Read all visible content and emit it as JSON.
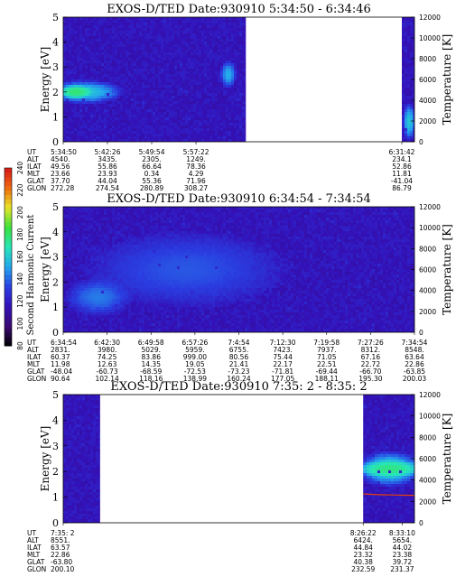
{
  "chart_data": {
    "type": "heatmap",
    "colorbar": {
      "label": "Second Harmonic Current",
      "ticks": [
        "80",
        "100",
        "120",
        "140",
        "160",
        "180",
        "200",
        "220",
        "240"
      ],
      "range": [
        80,
        240
      ],
      "colors": [
        "#000000",
        "#3a0a72",
        "#3311b8",
        "#2a3de0",
        "#24a6ee",
        "#28e6b8",
        "#3ce03c",
        "#e6e628",
        "#ee6a10",
        "#d81818"
      ]
    },
    "panels": [
      {
        "title": "EXOS-D/TED   Date:930910  5:34:50 - 6:34:46",
        "ylabel": "Energy [eV]",
        "y2label": "Temperature [K]",
        "ylim": [
          0,
          5
        ],
        "y_ticks": [
          "0",
          "1",
          "2",
          "3",
          "4",
          "5"
        ],
        "y2lim": [
          0,
          12000
        ],
        "y2_ticks": [
          "0",
          "2000",
          "4000",
          "6000",
          "8000",
          "10000",
          "12000"
        ],
        "data_segments": [
          [
            0,
            0.52
          ],
          [
            0.964,
            1.0
          ]
        ],
        "blobs": [
          {
            "x": 0.06,
            "y": 2.0,
            "rx": 0.12,
            "ry": 0.5,
            "level": 0.5
          },
          {
            "x": 0.035,
            "y": 2.0,
            "rx": 0.05,
            "ry": 0.28,
            "level": 0.62
          },
          {
            "x": 0.47,
            "y": 2.7,
            "rx": 0.025,
            "ry": 0.6,
            "level": 0.46
          },
          {
            "x": 0.985,
            "y": 0.8,
            "rx": 0.02,
            "ry": 0.8,
            "level": 0.5
          }
        ],
        "red_line": null,
        "orbit": {
          "labels": [
            "UT",
            "ALT",
            "ILAT",
            "MLT",
            "GLAT",
            "GLON"
          ],
          "columns": [
            {
              "x": 0.0,
              "values": [
                "5:34:50",
                "4540.",
                "49.56",
                "23.66",
                "37.70",
                "272.28"
              ]
            },
            {
              "x": 0.126,
              "values": [
                "5:42:26",
                "3435.",
                "55.86",
                "23.93",
                "44.04",
                "274.54"
              ]
            },
            {
              "x": 0.252,
              "values": [
                "5:49:54",
                "2305.",
                "66.64",
                "0.34",
                "55.36",
                "280.89"
              ]
            },
            {
              "x": 0.378,
              "values": [
                "5:57:22",
                "1249.",
                "78.36",
                "4.29",
                "71.96",
                "308.27"
              ]
            },
            {
              "x": 0.964,
              "values": [
                "6:31:42",
                "234.1",
                "52.86",
                "11.81",
                "-41.04",
                "86.79"
              ]
            }
          ]
        }
      },
      {
        "title": "EXOS-D/TED   Date:930910  6:34:54 - 7:34:54",
        "ylabel": "Energy [eV]",
        "y2label": "Temperature [K]",
        "ylim": [
          0,
          5
        ],
        "y_ticks": [
          "0",
          "1",
          "2",
          "3",
          "4",
          "5"
        ],
        "y2lim": [
          0,
          12000
        ],
        "y2_ticks": [
          "0",
          "2000",
          "4000",
          "6000",
          "8000",
          "10000",
          "12000"
        ],
        "data_segments": [
          [
            0,
            1.0
          ]
        ],
        "blobs": [
          {
            "x": 0.1,
            "y": 1.4,
            "rx": 0.1,
            "ry": 0.8,
            "level": 0.4
          },
          {
            "x": 0.35,
            "y": 2.5,
            "rx": 0.3,
            "ry": 1.6,
            "level": 0.36
          }
        ],
        "red_line": null,
        "orbit": {
          "labels": [
            "UT",
            "ALT",
            "ILAT",
            "MLT",
            "GLAT",
            "GLON"
          ],
          "columns": [
            {
              "x": 0.0,
              "values": [
                "6:34:54",
                "2831.",
                "60.37",
                "11.98",
                "-48.04",
                "90.64"
              ]
            },
            {
              "x": 0.125,
              "values": [
                "6:42:30",
                "3980.",
                "74.25",
                "12.63",
                "-60.73",
                "102.14"
              ]
            },
            {
              "x": 0.25,
              "values": [
                "6:49:58",
                "5029.",
                "83.86",
                "14.35",
                "-68.59",
                "118.16"
              ]
            },
            {
              "x": 0.375,
              "values": [
                "6:57:26",
                "5959.",
                "999.00",
                "19.05",
                "-72.53",
                "138.99"
              ]
            },
            {
              "x": 0.5,
              "values": [
                "7:4:54",
                "6755.",
                "80.56",
                "21.41",
                "-73.23",
                "160.24"
              ]
            },
            {
              "x": 0.625,
              "values": [
                "7:12:30",
                "7423.",
                "75.44",
                "22.17",
                "-71.81",
                "177.05"
              ]
            },
            {
              "x": 0.75,
              "values": [
                "7:19:58",
                "7937.",
                "71.05",
                "22.51",
                "-69.44",
                "188.11"
              ]
            },
            {
              "x": 0.875,
              "values": [
                "7:27:26",
                "8312.",
                "67.16",
                "22.72",
                "-66.70",
                "195.30"
              ]
            },
            {
              "x": 1.0,
              "values": [
                "7:34:54",
                "8548.",
                "63.64",
                "22.86",
                "-63.85",
                "200.03"
              ]
            }
          ]
        }
      },
      {
        "title": "EXOS-D/TED   Date:930910  7:35: 2 - 8:35: 2",
        "ylabel": "Energy [eV]",
        "y2label": "Temperature [K]",
        "ylim": [
          0,
          5
        ],
        "y_ticks": [
          "0",
          "1",
          "2",
          "3",
          "4",
          "5"
        ],
        "y2lim": [
          0,
          12000
        ],
        "y2_ticks": [
          "0",
          "2000",
          "4000",
          "6000",
          "8000",
          "10000",
          "12000"
        ],
        "data_segments": [
          [
            0,
            0.105
          ],
          [
            0.854,
            1.0
          ]
        ],
        "blobs": [
          {
            "x": 0.93,
            "y": 2.1,
            "rx": 0.1,
            "ry": 0.75,
            "level": 0.52
          },
          {
            "x": 0.93,
            "y": 2.1,
            "rx": 0.1,
            "ry": 0.35,
            "level": 0.6
          }
        ],
        "red_line": {
          "x_start": 0.854,
          "x_end": 1.0,
          "temps": [
            2700,
            2650,
            2620,
            2600,
            2580,
            2570
          ]
        },
        "orbit": {
          "labels": [
            "UT",
            "ALT",
            "ILAT",
            "MLT",
            "GLAT",
            "GLON"
          ],
          "columns": [
            {
              "x": 0.0,
              "values": [
                "7:35: 2",
                "8551.",
                "63.57",
                "22.86",
                "-63.80",
                "200.10"
              ]
            },
            {
              "x": 0.854,
              "values": [
                "8:26:22",
                "6424.",
                "44.84",
                "23.32",
                "40.38",
                "232.59"
              ]
            },
            {
              "x": 0.965,
              "values": [
                "8:33:10",
                "5654.",
                "44.02",
                "23.38",
                "39.72",
                "231.37"
              ]
            }
          ]
        }
      }
    ]
  }
}
